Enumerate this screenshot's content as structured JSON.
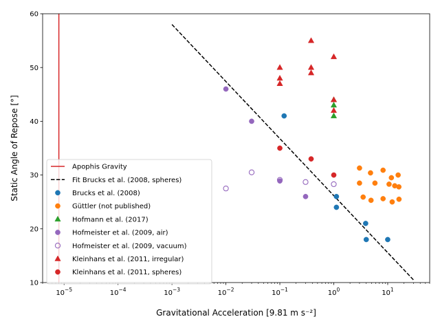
{
  "chart_data": {
    "type": "scatter",
    "title": "",
    "xlabel": "Gravitational Acceleration [9.81 m s⁻²]",
    "ylabel": "Static Angle of Repose [°]",
    "xscale": "log",
    "xlim": [
      4e-06,
      60
    ],
    "ylim": [
      10,
      60
    ],
    "x_ticks": [
      {
        "value": 1e-05,
        "base": "10",
        "exp": "−5"
      },
      {
        "value": 0.0001,
        "base": "10",
        "exp": "−4"
      },
      {
        "value": 0.001,
        "base": "10",
        "exp": "−3"
      },
      {
        "value": 0.01,
        "base": "10",
        "exp": "−2"
      },
      {
        "value": 0.1,
        "base": "10",
        "exp": "−1"
      },
      {
        "value": 1,
        "base": "10",
        "exp": "0"
      },
      {
        "value": 10,
        "base": "10",
        "exp": "1"
      }
    ],
    "y_ticks": [
      "10",
      "20",
      "30",
      "40",
      "50",
      "60"
    ],
    "grid": false,
    "legend_position": "lower-left",
    "vlines": [
      {
        "name": "Apophis Gravity",
        "x": 8e-06,
        "color": "#d62728"
      }
    ],
    "lines": [
      {
        "name": "Fit Brucks et al. (2008, spheres)",
        "color": "#000000",
        "dash": "dashed",
        "x": [
          0.001,
          30
        ],
        "y": [
          58,
          10.5
        ]
      }
    ],
    "series": [
      {
        "name": "Brucks et al. (2008)",
        "marker": "circle",
        "filled": true,
        "color": "#1f77b4",
        "points": [
          [
            0.12,
            41
          ],
          [
            1.12,
            26
          ],
          [
            1.12,
            24
          ],
          [
            3.9,
            21
          ],
          [
            4.0,
            18
          ],
          [
            10,
            18
          ]
        ]
      },
      {
        "name": "Güttler (not published)",
        "marker": "circle",
        "filled": true,
        "color": "#ff7f0e",
        "points": [
          [
            3.0,
            31.3
          ],
          [
            3.0,
            28.5
          ],
          [
            3.5,
            25.9
          ],
          [
            4.8,
            30.4
          ],
          [
            4.9,
            25.3
          ],
          [
            5.8,
            28.5
          ],
          [
            8.2,
            30.9
          ],
          [
            8.2,
            25.6
          ],
          [
            10.6,
            28.3
          ],
          [
            11.7,
            29.5
          ],
          [
            12.1,
            25.0
          ],
          [
            13.5,
            28.0
          ],
          [
            15.6,
            30.0
          ],
          [
            16.1,
            27.8
          ],
          [
            16.2,
            25.5
          ]
        ]
      },
      {
        "name": "Hofmann et al. (2017)",
        "marker": "triangle",
        "filled": true,
        "color": "#2ca02c",
        "points": [
          [
            1,
            44
          ],
          [
            1,
            43
          ],
          [
            1,
            41
          ]
        ]
      },
      {
        "name": "Hofmeister et al. (2009, air)",
        "marker": "circle",
        "filled": true,
        "color": "#9467bd",
        "points": [
          [
            0.01,
            46
          ],
          [
            0.03,
            40
          ],
          [
            0.1,
            28.9
          ],
          [
            0.3,
            26
          ]
        ]
      },
      {
        "name": "Hofmeister et al. (2009, vacuum)",
        "marker": "circle",
        "filled": false,
        "color": "#9467bd",
        "points": [
          [
            0.01,
            27.5
          ],
          [
            0.03,
            30.5
          ],
          [
            0.1,
            29.1
          ],
          [
            0.3,
            28.7
          ],
          [
            1,
            28.3
          ]
        ]
      },
      {
        "name": "Kleinhans et al. (2011, irregular)",
        "marker": "triangle",
        "filled": true,
        "color": "#d62728",
        "points": [
          [
            0.1,
            50
          ],
          [
            0.1,
            48
          ],
          [
            0.1,
            47
          ],
          [
            0.38,
            55
          ],
          [
            0.38,
            50
          ],
          [
            0.38,
            49
          ],
          [
            1,
            52
          ],
          [
            1,
            44
          ],
          [
            1,
            42
          ]
        ]
      },
      {
        "name": "Kleinhans et al. (2011, spheres)",
        "marker": "circle",
        "filled": true,
        "color": "#d62728",
        "points": [
          [
            0.1,
            35
          ],
          [
            0.38,
            33
          ],
          [
            1,
            30
          ]
        ]
      }
    ]
  }
}
